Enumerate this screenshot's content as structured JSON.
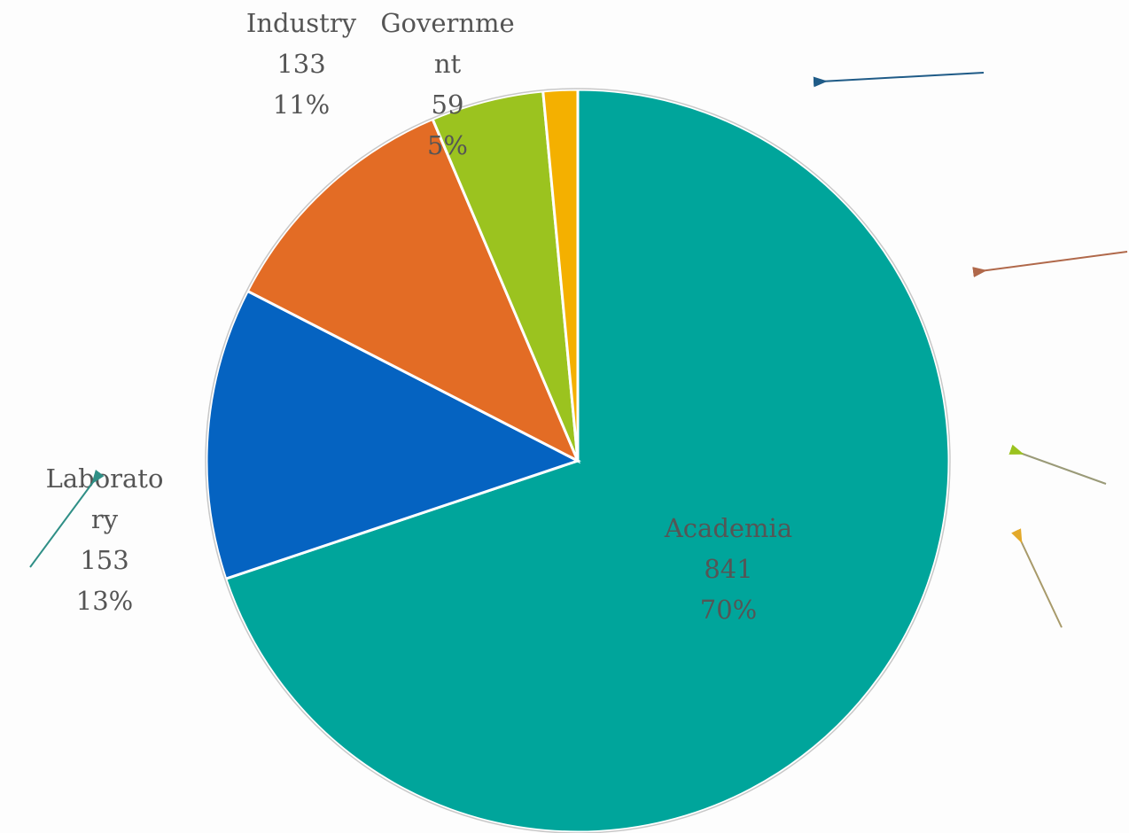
{
  "chart_data": {
    "type": "pie",
    "categories": [
      "Academia",
      "Laboratory",
      "Industry",
      "Government",
      null
    ],
    "values": [
      841,
      153,
      133,
      59,
      18
    ],
    "percent_labels": [
      "70%",
      "13%",
      "11%",
      "5%",
      null
    ],
    "colors": [
      "#00a59b",
      "#0563c1",
      "#e36c25",
      "#9bc31f",
      "#f4b000"
    ]
  }
}
